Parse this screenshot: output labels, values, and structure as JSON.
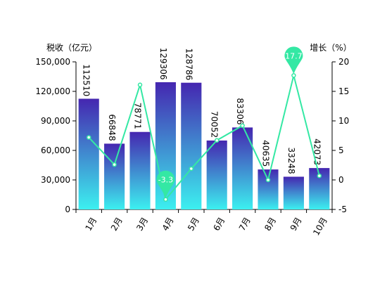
{
  "chart_data": {
    "type": "bar",
    "categories": [
      "1月",
      "2月",
      "3月",
      "4月",
      "5月",
      "6月",
      "7月",
      "8月",
      "9月",
      "10月"
    ],
    "y_left_label": "税收（亿元）",
    "y_right_label": "增长（%）",
    "y_left_ticks": [
      "0",
      "30,000",
      "60,000",
      "90,000",
      "120,000",
      "150,000"
    ],
    "y_right_ticks": [
      "-5",
      "0",
      "5",
      "10",
      "15",
      "20"
    ],
    "y_left_range": [
      0,
      150000
    ],
    "y_right_range": [
      -5,
      20
    ],
    "series": [
      {
        "name": "税收（亿元）",
        "type": "bar",
        "axis": "left",
        "values": [
          112510,
          66848,
          78771,
          129306,
          128786,
          70052,
          83306,
          40635,
          33248,
          42073
        ],
        "labels": [
          "112510",
          "66848",
          "78771",
          "129306",
          "128786",
          "70052",
          "83306",
          "40635",
          "33248",
          "42073"
        ],
        "gradient_top": "#4526b0",
        "gradient_bottom": "#3cf0f0"
      },
      {
        "name": "增长（%）",
        "type": "line",
        "axis": "right",
        "values": [
          7.2,
          2.6,
          16.1,
          -3.3,
          1.9,
          6.7,
          9.2,
          0.0,
          17.7,
          0.7
        ],
        "color": "#34e8a4"
      }
    ],
    "markers": [
      {
        "category": "4月",
        "label": "-3.3",
        "kind": "min"
      },
      {
        "category": "9月",
        "label": "17.7",
        "kind": "max"
      }
    ],
    "grid": false,
    "legend": "none"
  }
}
